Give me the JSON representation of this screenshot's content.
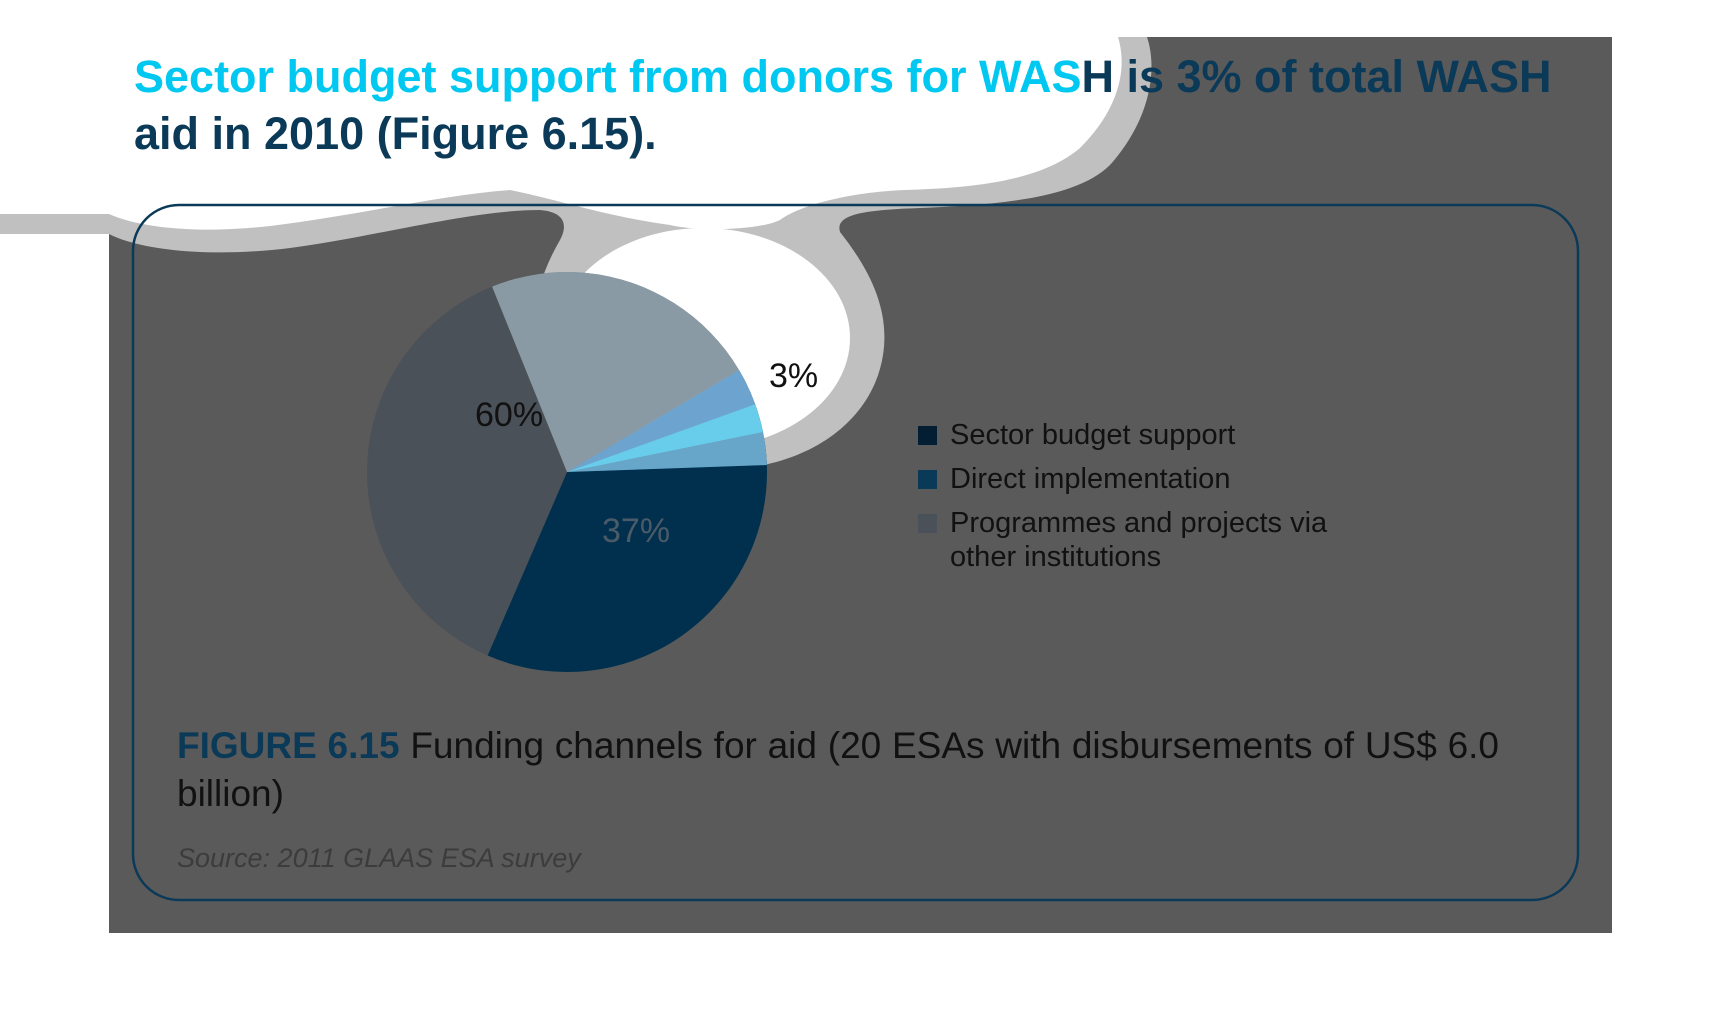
{
  "headline": {
    "part1": "Sector budget support from donors for WAS",
    "part2": "H is 3% of total WASH aid in 2010 (Figure 6.15)."
  },
  "colors": {
    "overlay": "#5a5a5a",
    "cloud_border": "#c0c0c0",
    "panel_border": "#0b3a58",
    "headline_cyan": "#00c8f0",
    "headline_dark": "#0b3a58"
  },
  "chart_data": {
    "type": "pie",
    "slices": [
      {
        "label": "Sector budget support",
        "value": 3,
        "data_label": "3%",
        "color": "#031e33"
      },
      {
        "label": "Direct implementation",
        "value": 37,
        "data_label": "37%",
        "color": "#00304d"
      },
      {
        "label": "Programmes and projects via other institutions",
        "value": 60,
        "data_label": "60%",
        "color": "#4a5158"
      }
    ],
    "legend": {
      "position": "right",
      "items": [
        {
          "label": "Sector budget support",
          "color": "#031e33"
        },
        {
          "label": "Direct implementation",
          "color": "#0b3a58"
        },
        {
          "label": "Programmes and projects via other institutions",
          "color": "#4a5158"
        }
      ]
    }
  },
  "caption": {
    "figure_number": "FIGURE 6.15",
    "text": " Funding channels for aid (20 ESAs with disbursements of US$ 6.0 billion)"
  },
  "source": "Source: 2011 GLAAS ESA survey"
}
